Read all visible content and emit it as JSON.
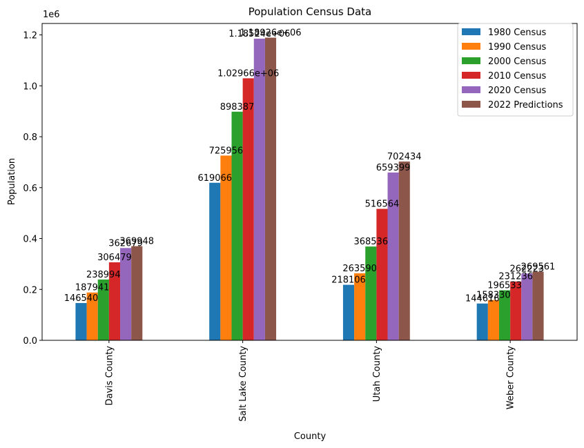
{
  "chart_data": {
    "type": "bar",
    "title": "Population Census Data",
    "xlabel": "County",
    "ylabel": "Population",
    "offset_text": "1e6",
    "ylim": [
      0,
      1245000
    ],
    "yticks": [
      0,
      200000,
      400000,
      600000,
      800000,
      1000000,
      1200000
    ],
    "ytick_labels": [
      "0.0",
      "0.2",
      "0.4",
      "0.6",
      "0.8",
      "1.0",
      "1.2"
    ],
    "legend_position": "top-right",
    "categories": [
      "Davis County",
      "Salt Lake County",
      "Utah County",
      "Weber County"
    ],
    "series": [
      {
        "name": "1980 Census",
        "color": "#1f77b4",
        "values": [
          146540,
          619066,
          218106,
          144616
        ],
        "labels": [
          "146540",
          "619066",
          "218106",
          "144616"
        ]
      },
      {
        "name": "1990 Census",
        "color": "#ff7f0e",
        "values": [
          187941,
          725956,
          263590,
          158330
        ],
        "labels": [
          "187941",
          "725956",
          "263590",
          "158330"
        ]
      },
      {
        "name": "2000 Census",
        "color": "#2ca02c",
        "values": [
          238994,
          898387,
          368536,
          196533
        ],
        "labels": [
          "238994",
          "898387",
          "368536",
          "196533"
        ]
      },
      {
        "name": "2010 Census",
        "color": "#d62728",
        "values": [
          306479,
          1029660,
          516564,
          231236
        ],
        "labels": [
          "306479",
          "1.02966e+06",
          "516564",
          "231236"
        ]
      },
      {
        "name": "2020 Census",
        "color": "#9467bd",
        "values": [
          362679,
          1185240,
          659399,
          262223
        ],
        "labels": [
          "362679",
          "1.18524e+06",
          "659399",
          "262223"
        ]
      },
      {
        "name": "2022 Predictions",
        "color": "#8c564b",
        "values": [
          369948,
          1189260,
          702434,
          269561
        ],
        "labels": [
          "369948",
          "1.18926e+06",
          "702434",
          "269561"
        ]
      }
    ]
  }
}
